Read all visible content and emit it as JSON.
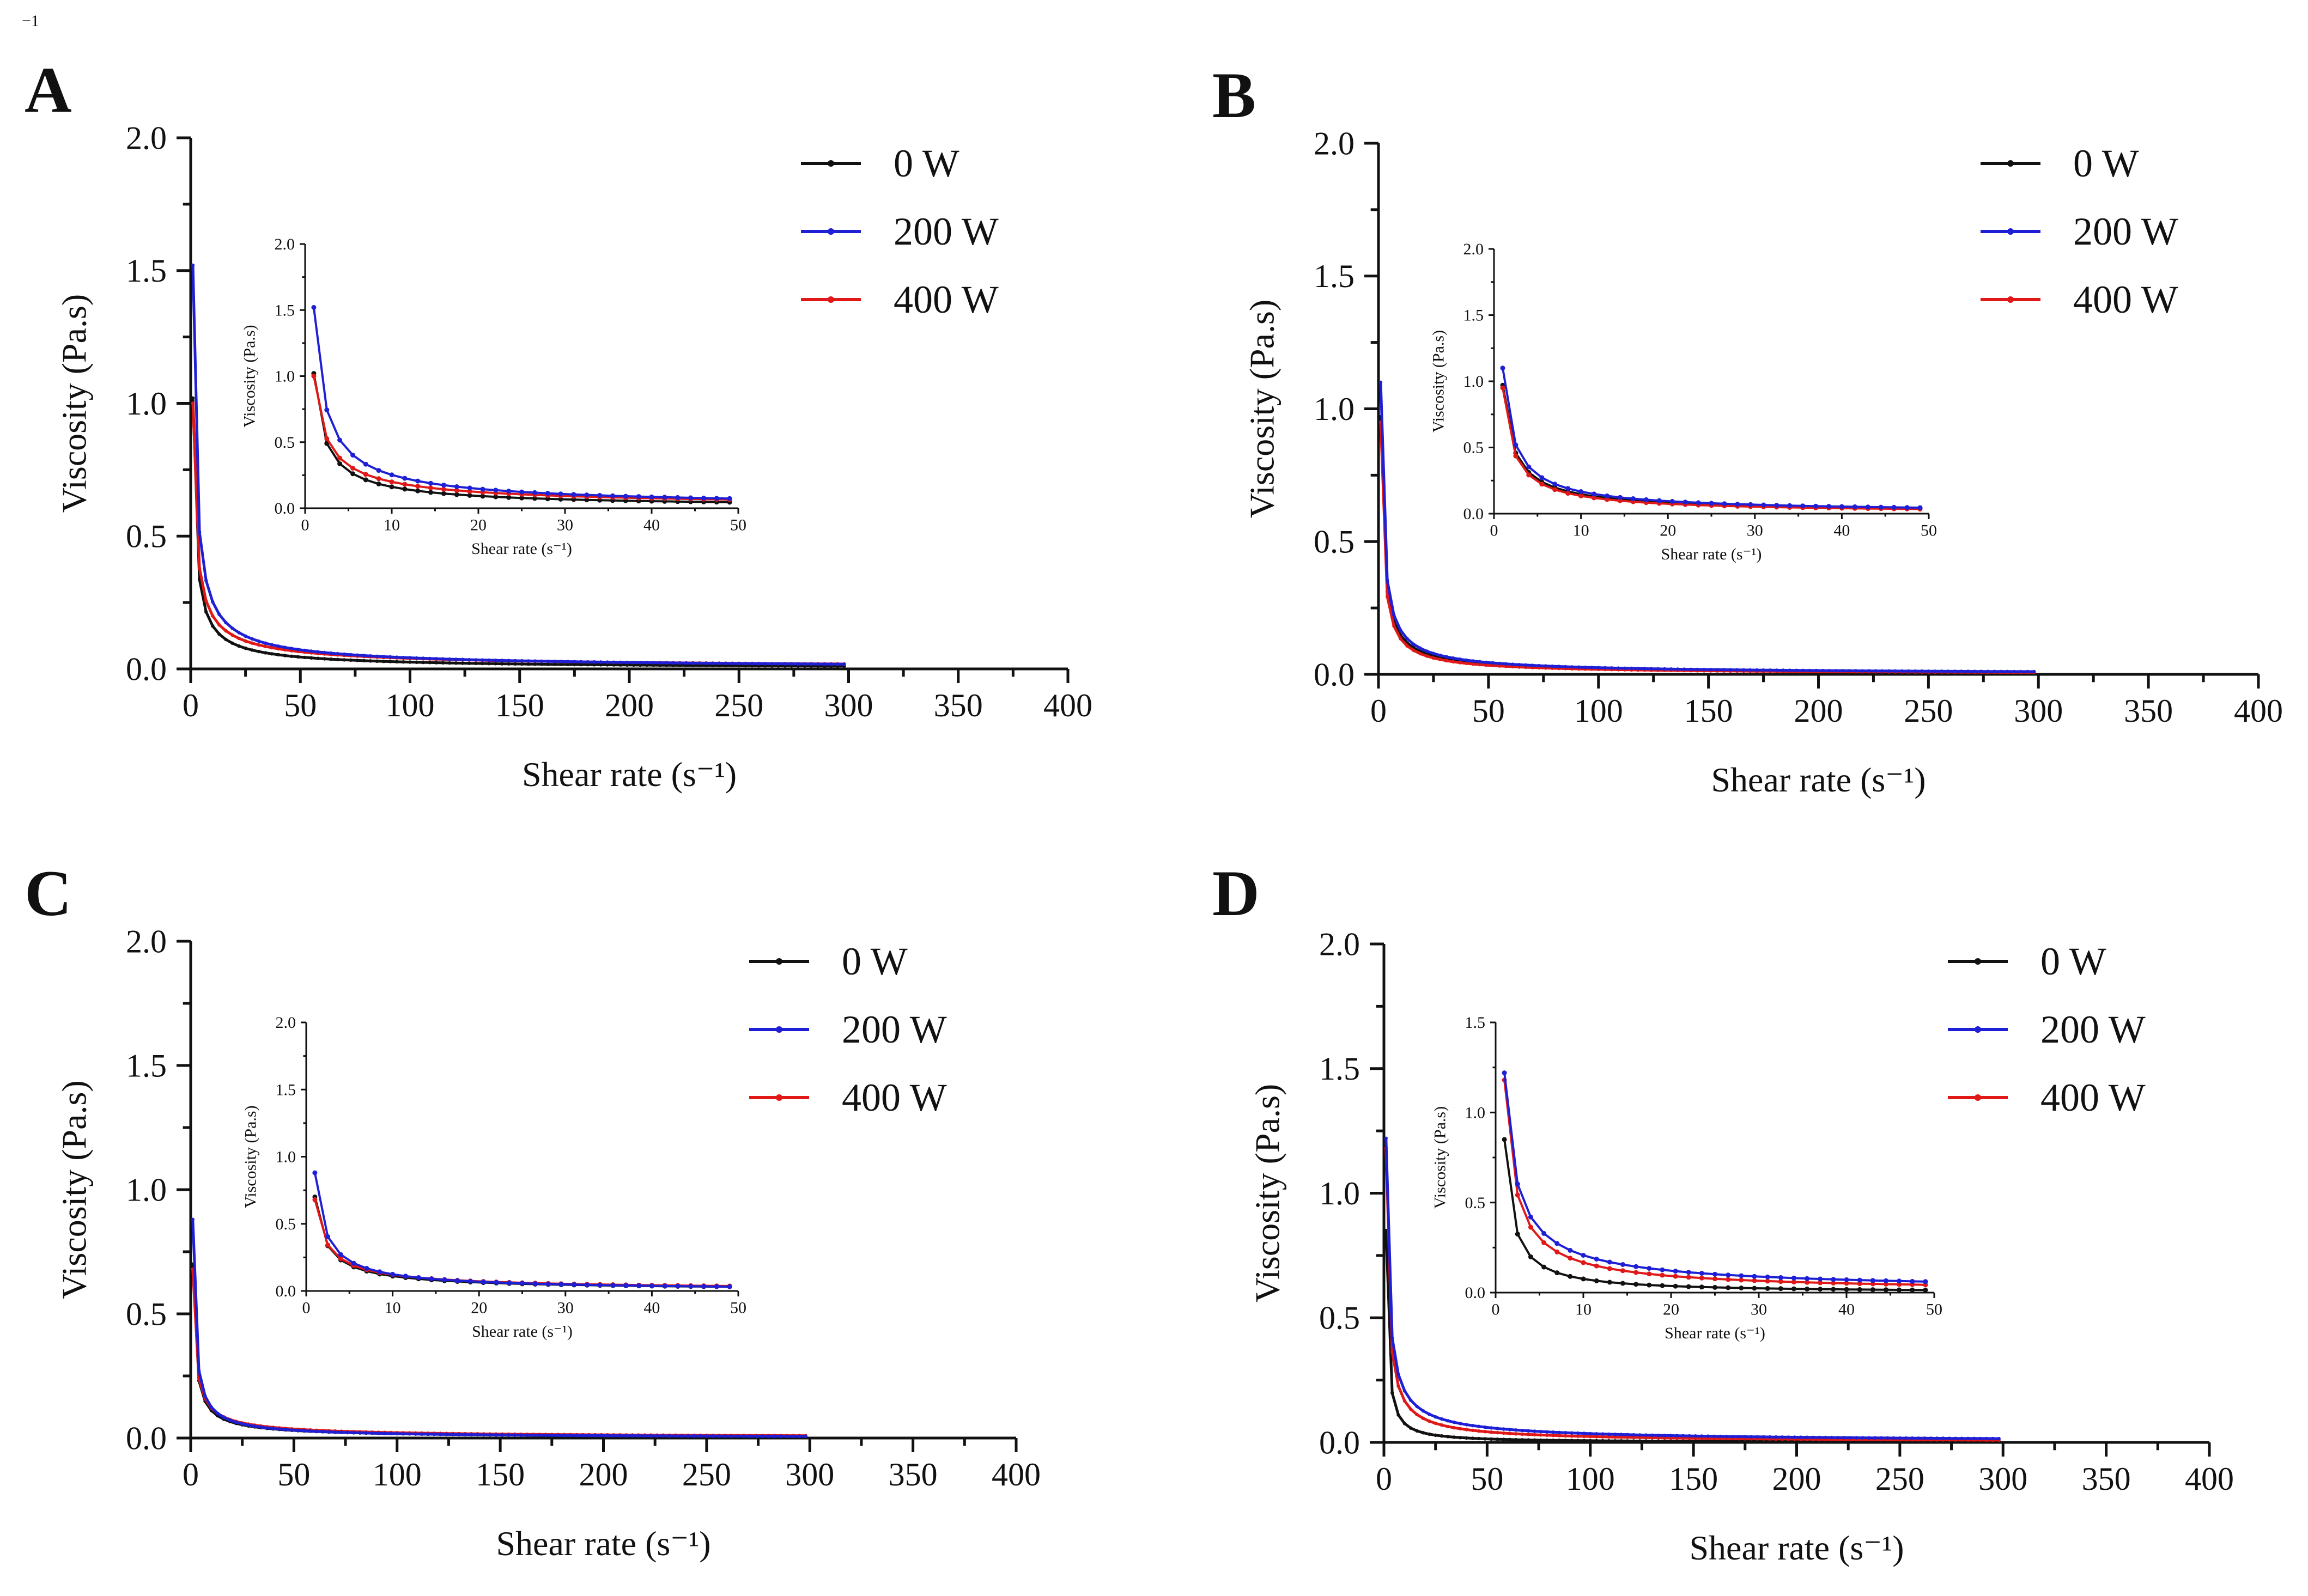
{
  "corner_note": "−1",
  "series_names": [
    "0 W",
    "200 W",
    "400 W"
  ],
  "colors": {
    "0 W": "#111111",
    "200 W": "#1f1fd6",
    "400 W": "#e01818"
  },
  "chart_data": [
    {
      "panel": "A",
      "type": "line",
      "legend": "top-right",
      "main": {
        "xlabel": "Shear rate (s⁻¹)",
        "ylabel": "Viscosity (Pa.s)",
        "xlim": [
          0,
          400
        ],
        "ylim": [
          0,
          2.0
        ],
        "xticks": [
          "0",
          "50",
          "100",
          "150",
          "200",
          "250",
          "300",
          "350",
          "400"
        ],
        "yticks": [
          "0.0",
          "0.5",
          "1.0",
          "1.5",
          "2.0"
        ]
      },
      "inset": {
        "xlabel": "Shear rate (s⁻¹)",
        "ylabel": "Viscosity (Pa.s)",
        "xlim": [
          0,
          50
        ],
        "ylim": [
          0,
          2.0
        ],
        "xticks": [
          "0",
          "10",
          "20",
          "30",
          "40",
          "50"
        ],
        "yticks": [
          "0.0",
          "0.5",
          "1.0",
          "1.5",
          "2.0"
        ]
      },
      "series": [
        {
          "name": "0 W",
          "y1": 1.02,
          "exponent": 0.8
        },
        {
          "name": "200 W",
          "y1": 1.52,
          "exponent": 0.78
        },
        {
          "name": "400 W",
          "y1": 1.0,
          "exponent": 0.7
        }
      ]
    },
    {
      "panel": "B",
      "type": "line",
      "legend": "top-right",
      "main": {
        "xlabel": "Shear rate (s⁻¹)",
        "ylabel": "Viscosity (Pa.s)",
        "xlim": [
          0,
          400
        ],
        "ylim": [
          0,
          2.0
        ],
        "xticks": [
          "0",
          "50",
          "100",
          "150",
          "200",
          "250",
          "300",
          "350",
          "400"
        ],
        "yticks": [
          "0.0",
          "0.5",
          "1.0",
          "1.5",
          "2.0"
        ]
      },
      "inset": {
        "xlabel": "Shear rate (s⁻¹)",
        "ylabel": "Viscosity (Pa.s)",
        "xlim": [
          0,
          50
        ],
        "ylim": [
          0,
          2.0
        ],
        "xticks": [
          "0",
          "10",
          "20",
          "30",
          "40",
          "50"
        ],
        "yticks": [
          "0.0",
          "0.5",
          "1.0",
          "1.5",
          "2.0"
        ]
      },
      "series": [
        {
          "name": "0 W",
          "y1": 0.97,
          "exponent": 0.82
        },
        {
          "name": "200 W",
          "y1": 1.1,
          "exponent": 0.82
        },
        {
          "name": "400 W",
          "y1": 0.95,
          "exponent": 0.85
        }
      ]
    },
    {
      "panel": "C",
      "type": "line",
      "legend": "top-right",
      "main": {
        "xlabel": "Shear rate (s⁻¹)",
        "ylabel": "Viscosity (Pa.s)",
        "xlim": [
          0,
          400
        ],
        "ylim": [
          0,
          2.0
        ],
        "xticks": [
          "0",
          "50",
          "100",
          "150",
          "200",
          "250",
          "300",
          "350",
          "400"
        ],
        "yticks": [
          "0.0",
          "0.5",
          "1.0",
          "1.5",
          "2.0"
        ]
      },
      "inset": {
        "xlabel": "Shear rate (s⁻¹)",
        "ylabel": "Viscosity (Pa.s)",
        "xlim": [
          0,
          50
        ],
        "ylim": [
          0,
          2.0
        ],
        "xticks": [
          "0",
          "10",
          "20",
          "30",
          "40",
          "50"
        ],
        "yticks": [
          "0.0",
          "0.5",
          "1.0",
          "1.5",
          "2.0"
        ]
      },
      "series": [
        {
          "name": "0 W",
          "y1": 0.7,
          "exponent": 0.8
        },
        {
          "name": "200 W",
          "y1": 0.88,
          "exponent": 0.85
        },
        {
          "name": "400 W",
          "y1": 0.68,
          "exponent": 0.75
        }
      ]
    },
    {
      "panel": "D",
      "type": "line",
      "legend": "top-right",
      "main": {
        "xlabel": "Shear rate (s⁻¹)",
        "ylabel": "Viscosity (Pa.s)",
        "xlim": [
          0,
          400
        ],
        "ylim": [
          0,
          2.0
        ],
        "xticks": [
          "0",
          "50",
          "100",
          "150",
          "200",
          "250",
          "300",
          "350",
          "400"
        ],
        "yticks": [
          "0.0",
          "0.5",
          "1.0",
          "1.5",
          "2.0"
        ]
      },
      "inset": {
        "xlabel": "Shear rate (s⁻¹)",
        "ylabel": "Viscosity (Pa.s)",
        "xlim": [
          0,
          50
        ],
        "ylim": [
          0,
          1.5
        ],
        "xticks": [
          "0",
          "10",
          "20",
          "30",
          "40",
          "50"
        ],
        "yticks": [
          "0.0",
          "0.5",
          "1.0",
          "1.5"
        ]
      },
      "series": [
        {
          "name": "0 W",
          "y1": 0.85,
          "exponent": 1.05
        },
        {
          "name": "200 W",
          "y1": 1.22,
          "exponent": 0.77
        },
        {
          "name": "400 W",
          "y1": 1.18,
          "exponent": 0.85
        }
      ]
    }
  ]
}
